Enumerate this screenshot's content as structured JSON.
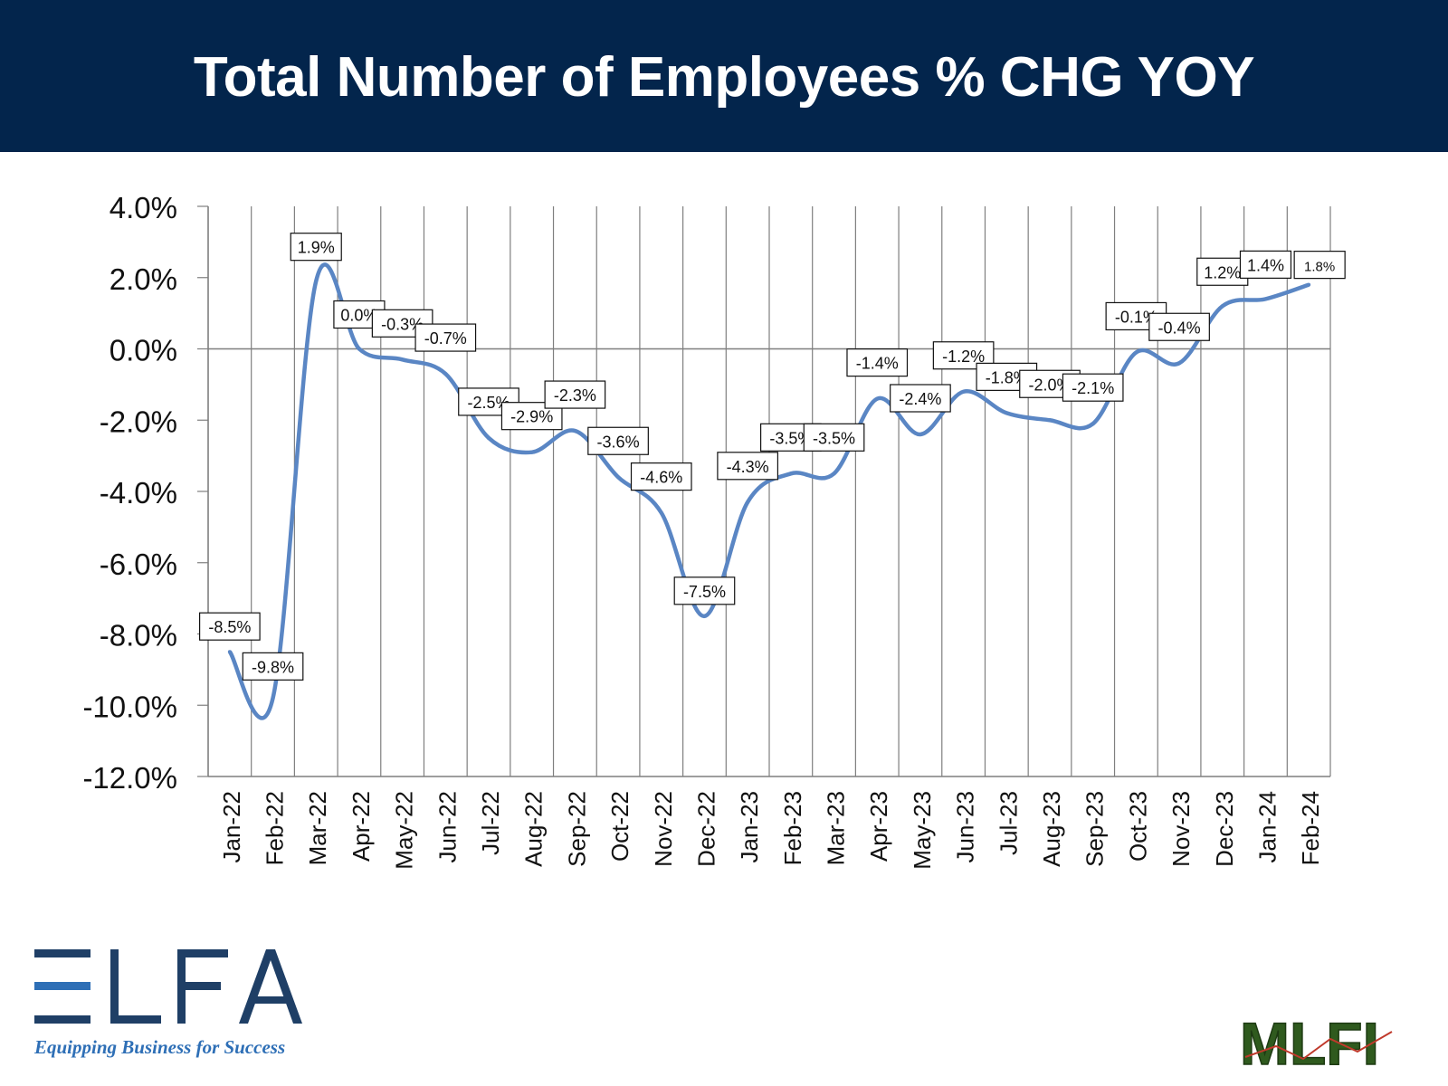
{
  "header": {
    "title": "Total Number of Employees % CHG YOY"
  },
  "colors": {
    "header_bg": "#03254c",
    "line": "#5a86c4",
    "grid": "#7f7f7f",
    "elfa_blue": "#2e6fb6",
    "mlfi_green": "#2f5a1e"
  },
  "chart_data": {
    "type": "line",
    "title": "Total Number of Employees % CHG YOY",
    "xlabel": "",
    "ylabel": "",
    "categories": [
      "Jan-22",
      "Feb-22",
      "Mar-22",
      "Apr-22",
      "May-22",
      "Jun-22",
      "Jul-22",
      "Aug-22",
      "Sep-22",
      "Oct-22",
      "Nov-22",
      "Dec-22",
      "Jan-23",
      "Feb-23",
      "Mar-23",
      "Apr-23",
      "May-23",
      "Jun-23",
      "Jul-23",
      "Aug-23",
      "Sep-23",
      "Oct-23",
      "Nov-23",
      "Dec-23",
      "Jan-24",
      "Feb-24"
    ],
    "series": [
      {
        "name": "",
        "values": [
          -8.5,
          -9.8,
          1.9,
          0.0,
          -0.3,
          -0.7,
          -2.5,
          -2.9,
          -2.3,
          -3.6,
          -4.6,
          -7.5,
          -4.3,
          -3.5,
          -3.5,
          -1.4,
          -2.4,
          -1.2,
          -1.8,
          -2.0,
          -2.1,
          -0.1,
          -0.4,
          1.2,
          1.4,
          1.8
        ],
        "labels": [
          "-8.5%",
          "-9.8%",
          "1.9%",
          "0.0%",
          "-0.3%",
          "-0.7%",
          "-2.5%",
          "-2.9%",
          "-2.3%",
          "-3.6%",
          "-4.6%",
          "-7.5%",
          "-4.3%",
          "-3.5%",
          "-3.5%",
          "-1.4%",
          "-2.4%",
          "-1.2%",
          "-1.8%",
          "-2.0%",
          "-2.1%",
          "-0.1%",
          "-0.4%",
          "1.2%",
          "1.4%",
          "1.8%"
        ]
      }
    ],
    "yticks": [
      "4.0%",
      "2.0%",
      "0.0%",
      "-2.0%",
      "-4.0%",
      "-6.0%",
      "-8.0%",
      "-10.0%",
      "-12.0%"
    ],
    "ylim": [
      -12,
      4
    ],
    "grid": "vertical",
    "legend": "none"
  },
  "logos": {
    "elfa": {
      "word": "ELFA",
      "tagline": "Equipping Business for Success"
    },
    "mlfi": {
      "word": "MLFI"
    }
  }
}
